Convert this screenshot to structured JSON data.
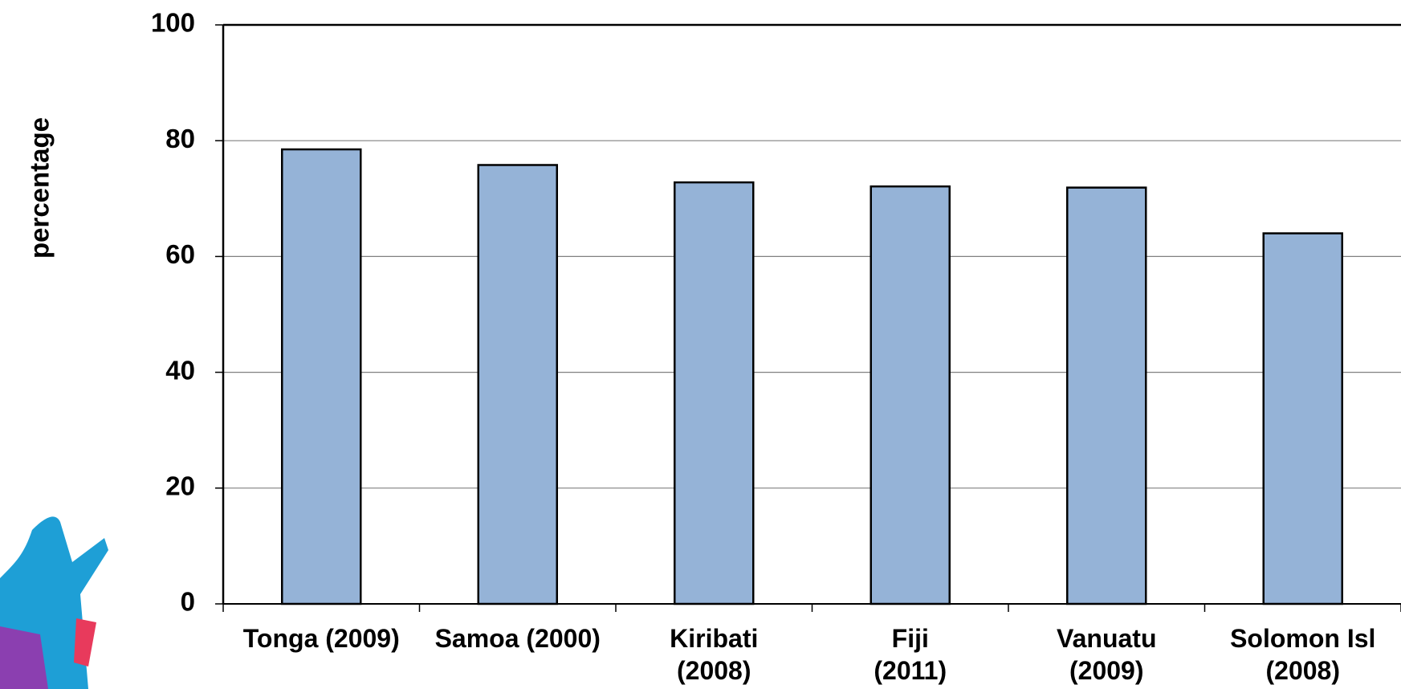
{
  "chart_data": {
    "type": "bar",
    "y_axis_label": "percentage",
    "categories": [
      "Tonga (2009)",
      "Samoa (2000)",
      "Kiribati\n(2008)",
      "Fiji\n(2011)",
      "Vanuatu\n(2009)",
      "Solomon Isl\n(2008)"
    ],
    "values": [
      78.5,
      75.8,
      72.8,
      72.1,
      71.9,
      64.0
    ],
    "color": "#95b3d7",
    "ylim": [
      0,
      100
    ],
    "yticks": [
      0,
      20,
      40,
      60,
      80,
      100
    ],
    "grid": true
  }
}
